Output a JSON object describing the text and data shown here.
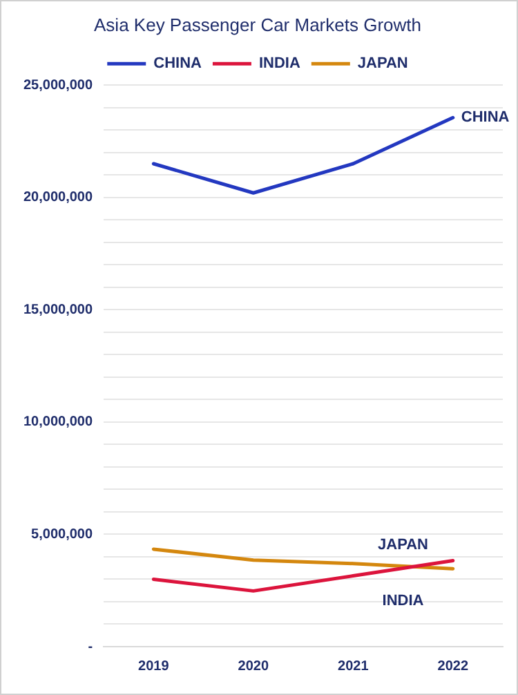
{
  "chart_data": {
    "type": "line",
    "title": "Asia Key Passenger Car Markets Growth",
    "categories": [
      "2019",
      "2020",
      "2021",
      "2022"
    ],
    "series": [
      {
        "name": "CHINA",
        "color": "#2338c0",
        "values": [
          21500000,
          20200000,
          21500000,
          23550000
        ]
      },
      {
        "name": "INDIA",
        "color": "#dc143c",
        "values": [
          3000000,
          2480000,
          3150000,
          3830000
        ]
      },
      {
        "name": "JAPAN",
        "color": "#d4870e",
        "values": [
          4340000,
          3850000,
          3700000,
          3470000
        ]
      }
    ],
    "ylim": [
      0,
      25000000
    ],
    "yticks": [
      {
        "value": 0,
        "label": "-"
      },
      {
        "value": 1000000,
        "label": null
      },
      {
        "value": 2000000,
        "label": null
      },
      {
        "value": 3000000,
        "label": null
      },
      {
        "value": 4000000,
        "label": null
      },
      {
        "value": 5000000,
        "label": "5,000,000"
      },
      {
        "value": 6000000,
        "label": null
      },
      {
        "value": 7000000,
        "label": null
      },
      {
        "value": 8000000,
        "label": null
      },
      {
        "value": 9000000,
        "label": null
      },
      {
        "value": 10000000,
        "label": "10,000,000"
      },
      {
        "value": 11000000,
        "label": null
      },
      {
        "value": 12000000,
        "label": null
      },
      {
        "value": 13000000,
        "label": null
      },
      {
        "value": 14000000,
        "label": null
      },
      {
        "value": 15000000,
        "label": "15,000,000"
      },
      {
        "value": 16000000,
        "label": null
      },
      {
        "value": 17000000,
        "label": null
      },
      {
        "value": 18000000,
        "label": null
      },
      {
        "value": 19000000,
        "label": null
      },
      {
        "value": 20000000,
        "label": "20,000,000"
      },
      {
        "value": 21000000,
        "label": null
      },
      {
        "value": 22000000,
        "label": null
      },
      {
        "value": 23000000,
        "label": null
      },
      {
        "value": 24000000,
        "label": null
      },
      {
        "value": 25000000,
        "label": "25,000,000"
      }
    ],
    "grid": "y",
    "legend": "top",
    "marker": "none",
    "line_style": "solid"
  }
}
